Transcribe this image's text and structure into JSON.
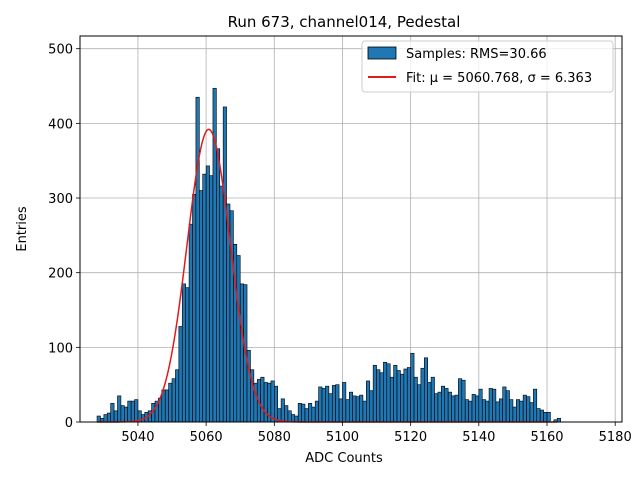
{
  "chart_data": {
    "type": "bar",
    "title": "Run 673, channel014, Pedestal",
    "xlabel": "ADC Counts",
    "ylabel": "Entries",
    "xlim": [
      5023,
      5182
    ],
    "ylim": [
      0,
      517
    ],
    "xticks": [
      5040,
      5060,
      5080,
      5100,
      5120,
      5140,
      5160,
      5180
    ],
    "yticks": [
      0,
      100,
      200,
      300,
      400,
      500
    ],
    "grid": true,
    "legend_position": "top-right",
    "bar_color": "#1f77b4",
    "fit_color": "#e31a1c",
    "histogram": {
      "name": "Samples: RMS=30.66",
      "bin_width": 1,
      "x_start": 5028,
      "values": [
        8,
        5,
        10,
        12,
        25,
        15,
        35,
        22,
        20,
        28,
        28,
        30,
        15,
        10,
        13,
        15,
        25,
        28,
        32,
        43,
        43,
        52,
        58,
        70,
        128,
        185,
        180,
        265,
        305,
        435,
        310,
        332,
        343,
        330,
        447,
        366,
        316,
        422,
        292,
        283,
        238,
        223,
        185,
        184,
        96,
        70,
        52,
        57,
        60,
        53,
        52,
        55,
        48,
        18,
        31,
        22,
        15,
        10,
        8,
        25,
        24,
        18,
        25,
        20,
        28,
        47,
        45,
        48,
        38,
        49,
        50,
        31,
        53,
        30,
        40,
        35,
        34,
        36,
        28,
        55,
        42,
        76,
        70,
        66,
        80,
        78,
        60,
        76,
        69,
        64,
        71,
        73,
        92,
        60,
        50,
        72,
        86,
        53,
        60,
        38,
        40,
        48,
        45,
        40,
        35,
        36,
        58,
        56,
        30,
        28,
        37,
        35,
        44,
        30,
        28,
        45,
        44,
        27,
        31,
        47,
        42,
        30,
        20,
        30,
        28,
        36,
        34,
        26,
        44,
        18,
        16,
        13,
        13,
        0,
        3,
        5
      ]
    },
    "fit": {
      "name": "Fit: μ = 5060.768, σ = 6.363",
      "mu": 5060.768,
      "sigma": 6.363,
      "amplitude": 392,
      "x_range": [
        5028,
        5163
      ]
    }
  }
}
